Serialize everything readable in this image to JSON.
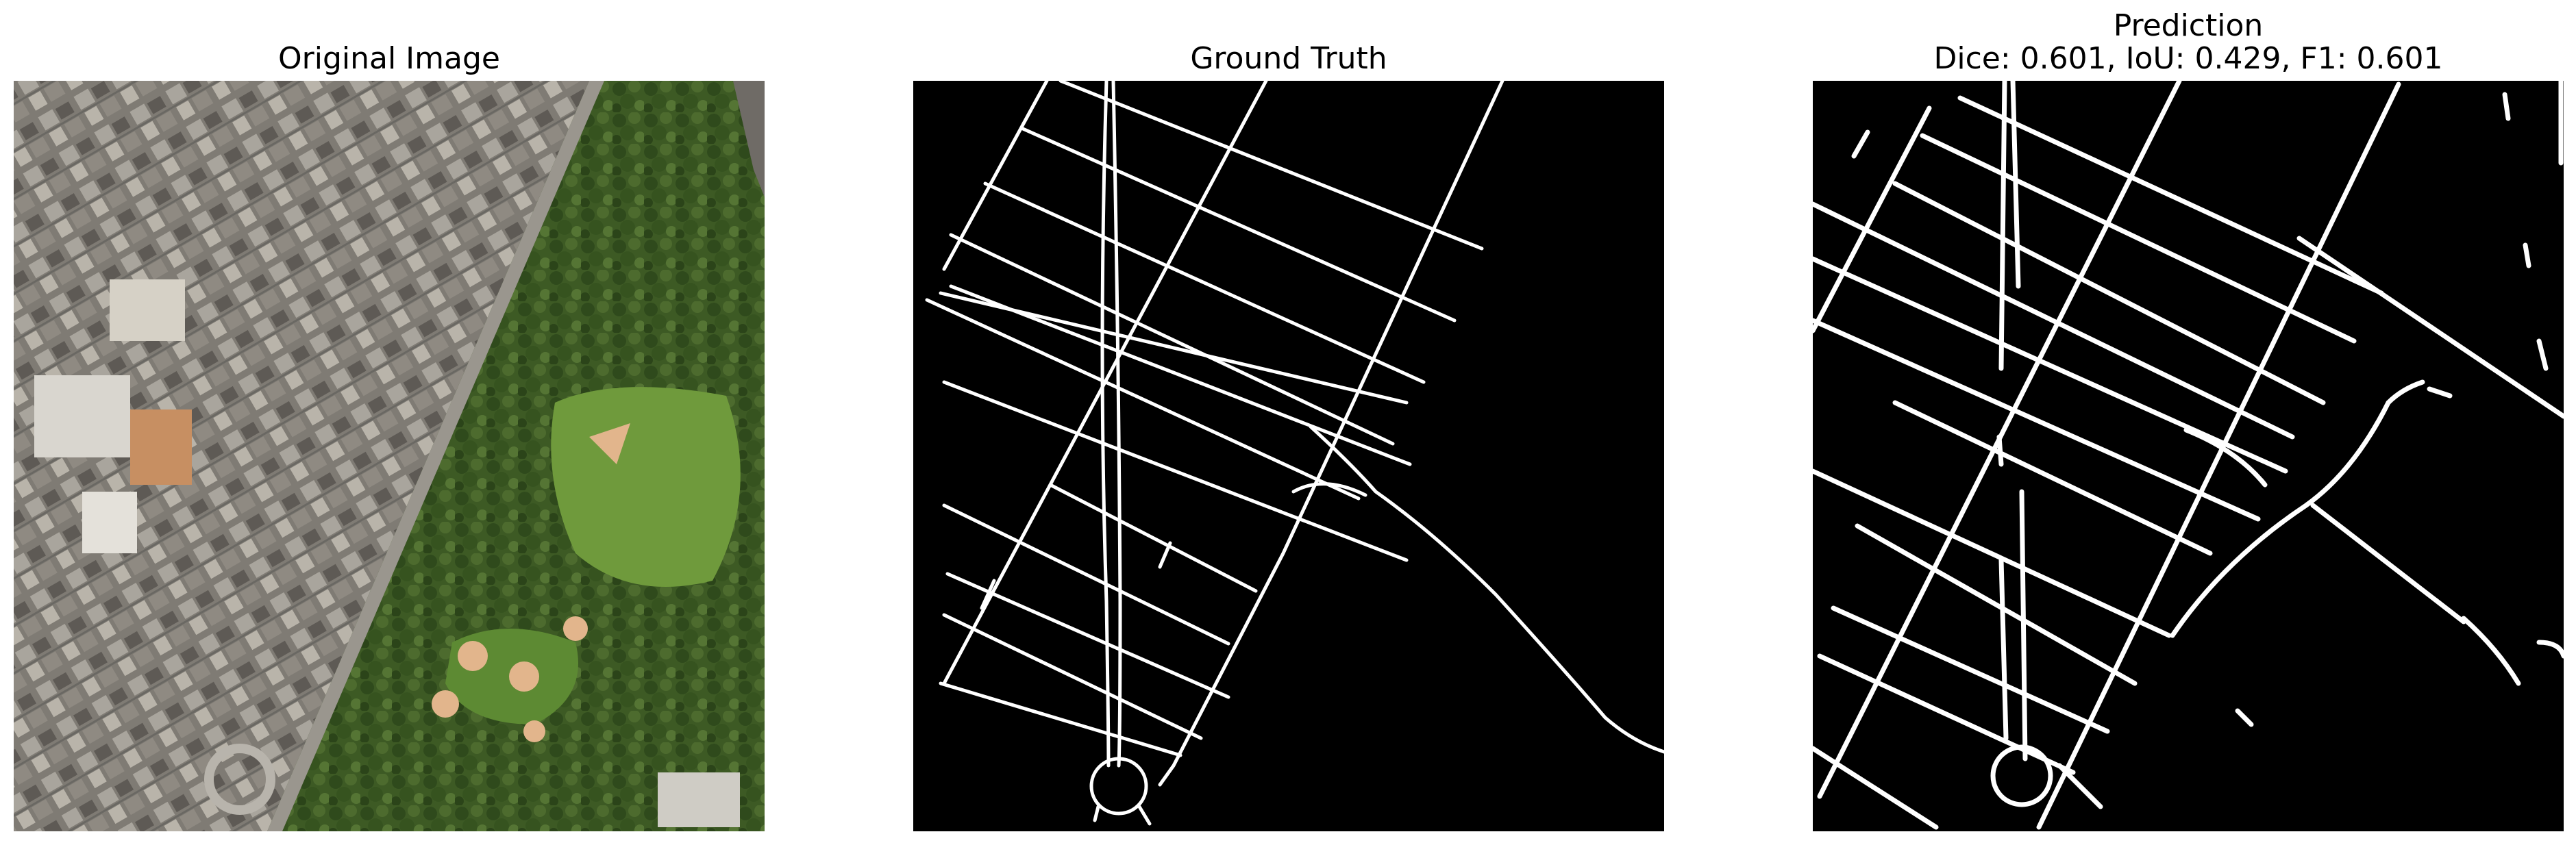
{
  "panels": [
    {
      "title": "Original Image"
    },
    {
      "title": "Ground Truth"
    },
    {
      "title": "Prediction",
      "subtitle": "Dice: 0.601, IoU: 0.429, F1: 0.601"
    }
  ],
  "colors": {
    "background": "#ffffff",
    "mask_background": "#000000",
    "mask_foreground": "#ffffff",
    "vegetation": "#3d5a24",
    "lawn": "#6f9a3c",
    "sand": "#e2b58c",
    "buildings": "#8d8a84"
  }
}
